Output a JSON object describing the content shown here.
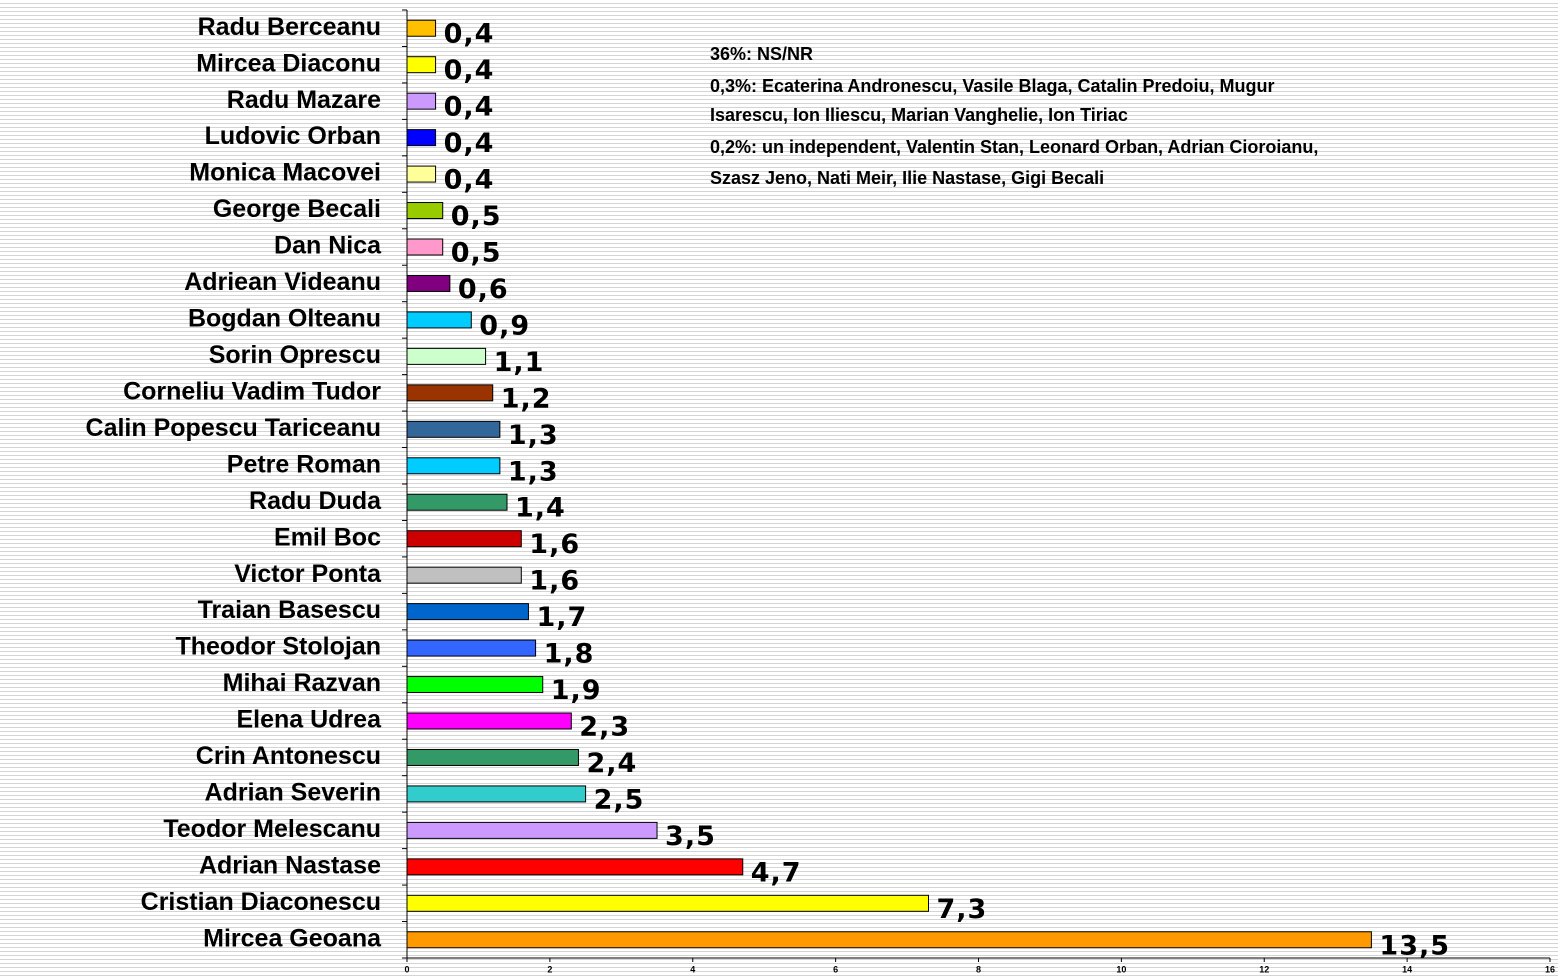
{
  "chart_data": {
    "type": "barh",
    "categories": [
      "Radu Berceanu",
      "Mircea Diaconu",
      "Radu Mazare",
      "Ludovic Orban",
      "Monica Macovei",
      "George Becali",
      "Dan Nica",
      "Adriean Videanu",
      "Bogdan Olteanu",
      "Sorin Oprescu",
      "Corneliu Vadim Tudor",
      "Calin Popescu Tariceanu",
      "Petre Roman",
      "Radu Duda",
      "Emil Boc",
      "Victor Ponta",
      "Traian Basescu",
      "Theodor Stolojan",
      "Mihai Razvan",
      "Elena Udrea",
      "Crin Antonescu",
      "Adrian Severin",
      "Teodor Melescanu",
      "Adrian Nastase",
      "Cristian Diaconescu",
      "Mircea Geoana"
    ],
    "values": [
      0.4,
      0.4,
      0.4,
      0.4,
      0.4,
      0.5,
      0.5,
      0.6,
      0.9,
      1.1,
      1.2,
      1.3,
      1.3,
      1.4,
      1.6,
      1.6,
      1.7,
      1.8,
      1.9,
      2.3,
      2.4,
      2.5,
      3.5,
      4.7,
      7.3,
      13.5
    ],
    "value_labels": [
      "0,4",
      "0,4",
      "0,4",
      "0,4",
      "0,4",
      "0,5",
      "0,5",
      "0,6",
      "0,9",
      "1,1",
      "1,2",
      "1,3",
      "1,3",
      "1,4",
      "1,6",
      "1,6",
      "1,7",
      "1,8",
      "1,9",
      "2,3",
      "2,4",
      "2,5",
      "3,5",
      "4,7",
      "7,3",
      "13,5"
    ],
    "colors": [
      "#FFC000",
      "#FFFF00",
      "#CC99FF",
      "#0000FF",
      "#FFFF99",
      "#99CC00",
      "#FF99CC",
      "#800080",
      "#00CCFF",
      "#CCFFCC",
      "#993300",
      "#336699",
      "#00CCFF",
      "#339966",
      "#CC0000",
      "#C0C0C0",
      "#0066CC",
      "#3366FF",
      "#00FF00",
      "#FF00FF",
      "#339966",
      "#33CCCC",
      "#CC99FF",
      "#FF0000",
      "#FFFF00",
      "#FF9900"
    ],
    "xlim": [
      0,
      16
    ],
    "xticks": [
      0,
      2,
      4,
      6,
      8,
      10,
      12,
      14,
      16
    ],
    "annotations": [
      "36%: NS/NR",
      "0,3%: Ecaterina Andronescu, Vasile Blaga, Catalin Predoiu, Mugur",
      "Isarescu, Ion Iliescu, Marian Vanghelie, Ion Tiriac",
      "0,2%: un independent, Valentin Stan, Leonard Orban, Adrian Cioroianu,",
      "Szasz Jeno, Nati Meir, Ilie Nastase, Gigi Becali"
    ]
  }
}
